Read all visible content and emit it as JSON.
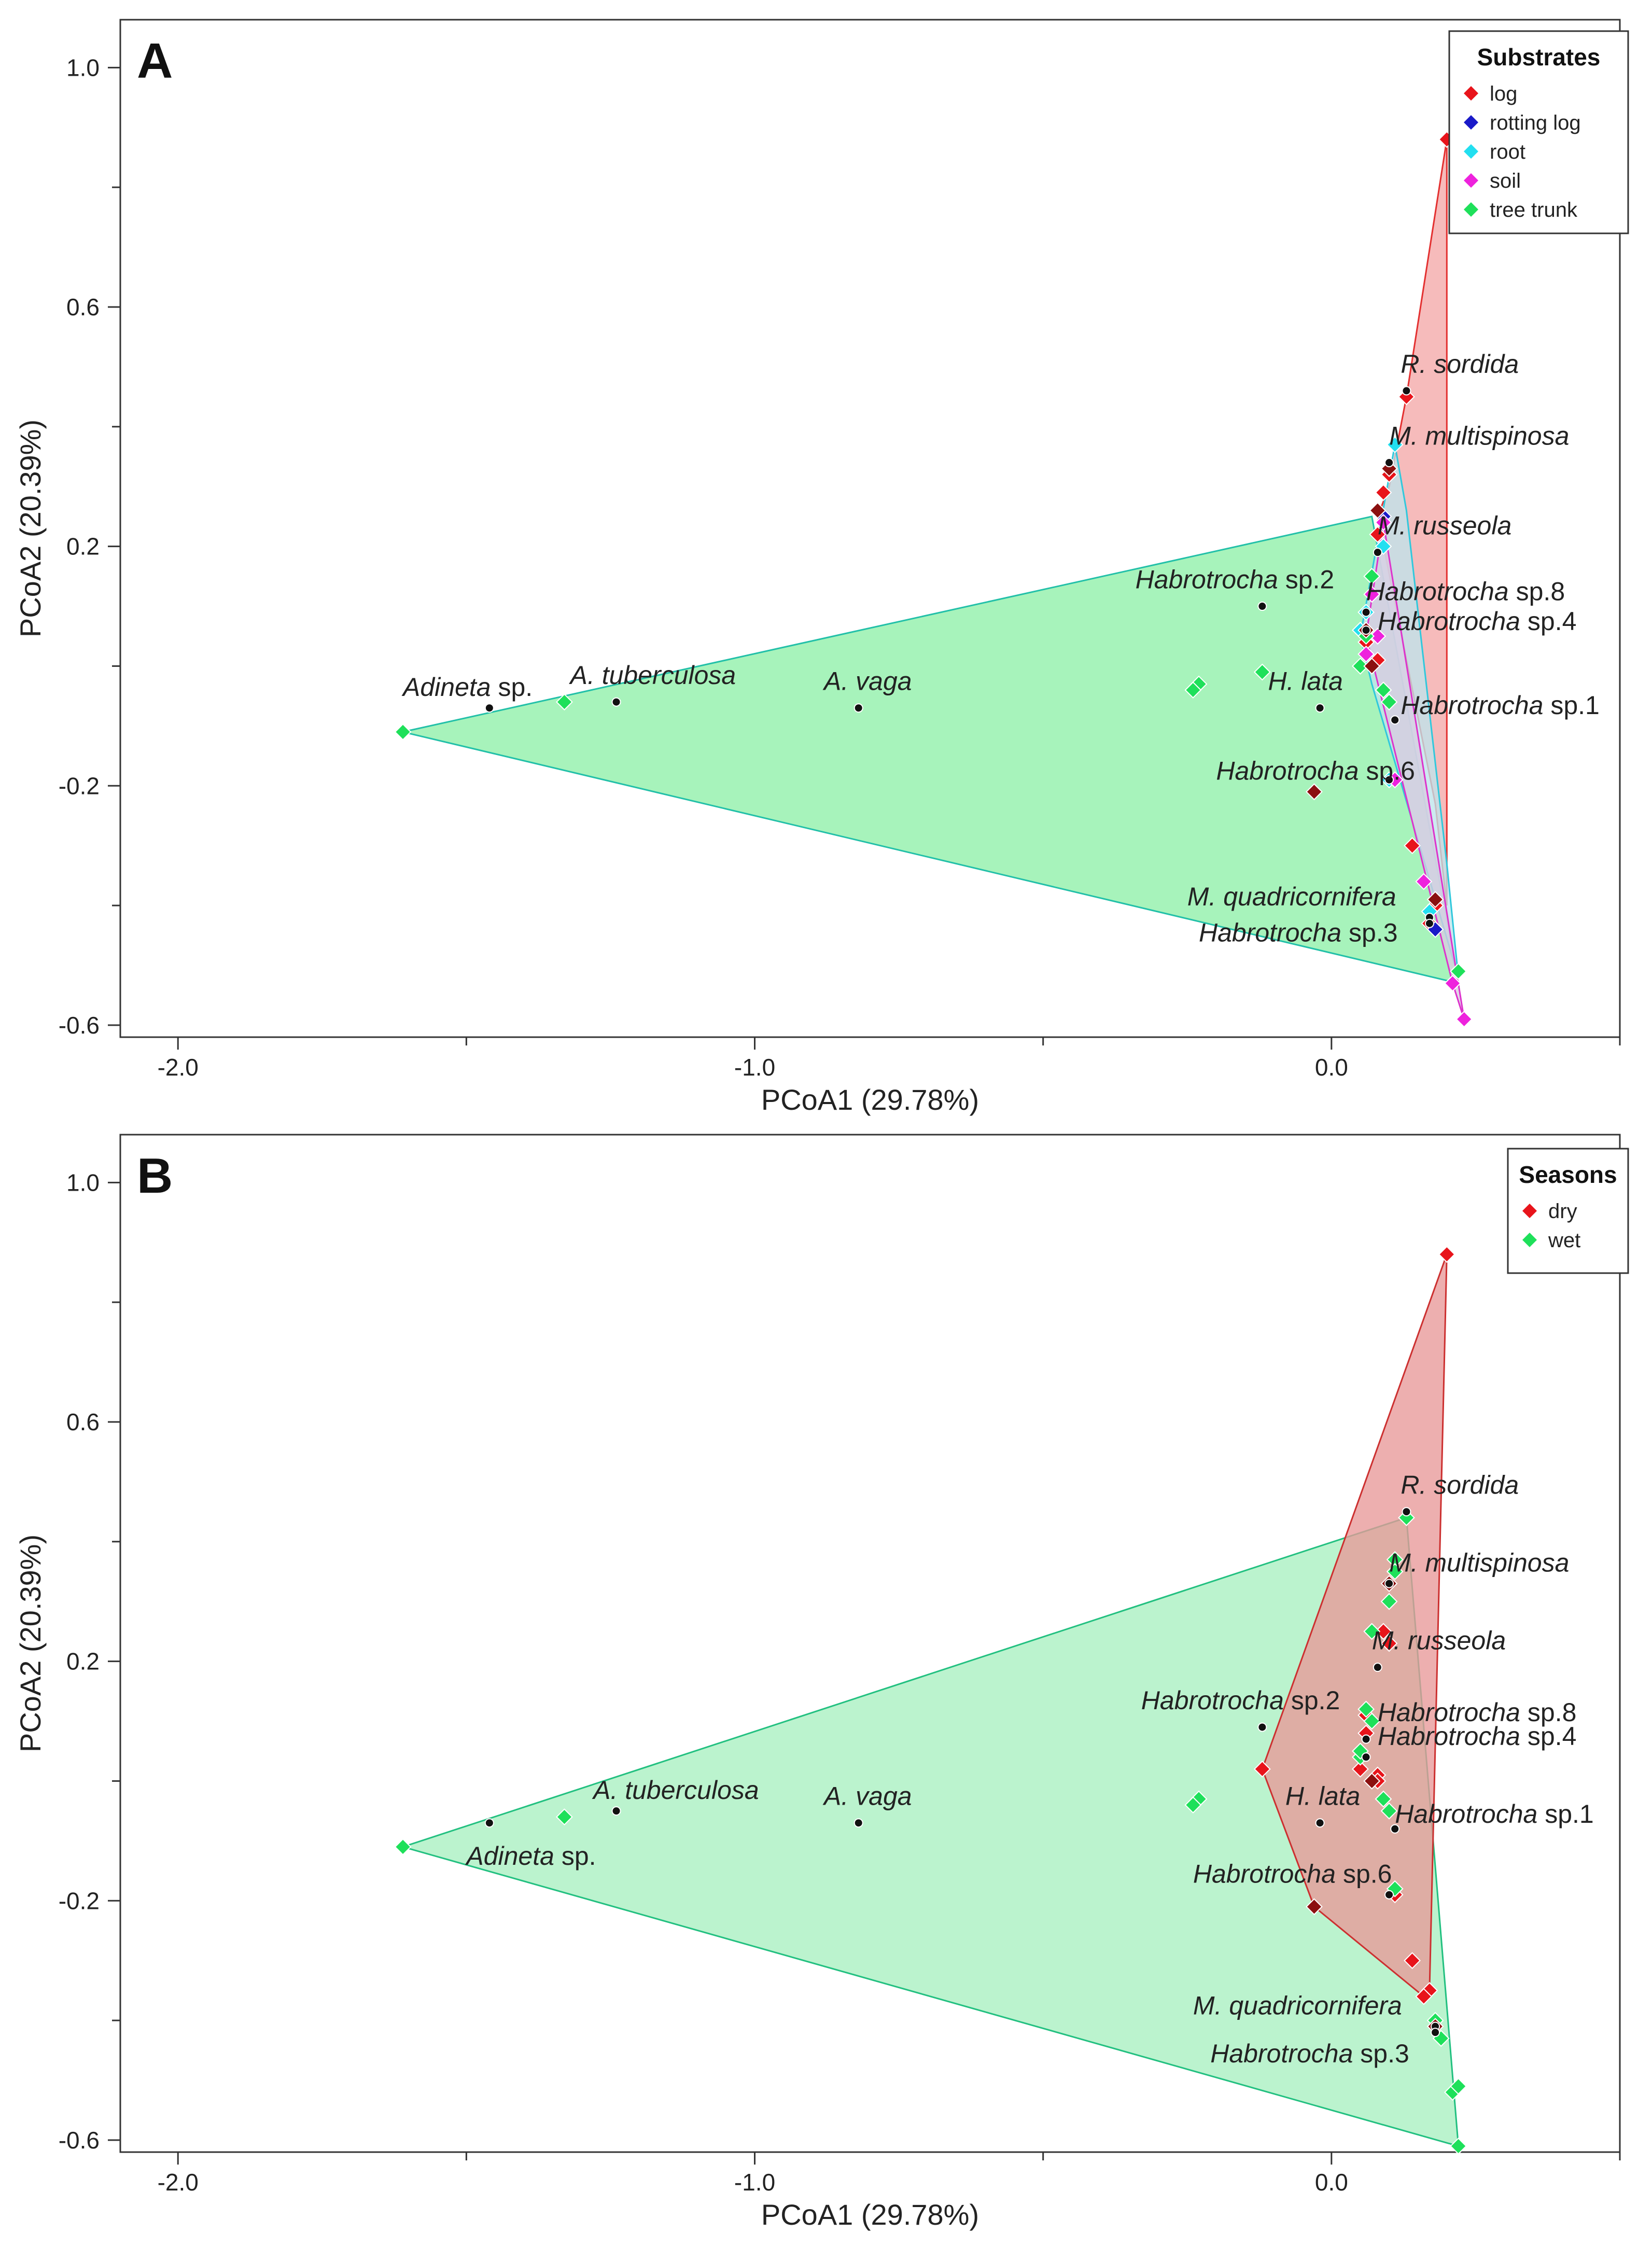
{
  "chart_data": [
    {
      "type": "scatter",
      "panel_label": "A",
      "xlabel": "PCoA1 (29.78%)",
      "ylabel": "PCoA2 (20.39%)",
      "xlim": [
        -2.1,
        0.5
      ],
      "ylim": [
        -0.62,
        1.08
      ],
      "x_ticks": [
        -2.0,
        -1.0,
        0.0
      ],
      "x_tick_labels": [
        "-2.0",
        "-1.0",
        "0.0"
      ],
      "x_minor_ticks": [
        -1.5,
        -0.5,
        0.5
      ],
      "y_ticks": [
        -0.6,
        -0.2,
        0.2,
        0.6,
        1.0
      ],
      "y_tick_labels": [
        "-0.6",
        "-0.2",
        "0.2",
        "0.6",
        "1.0"
      ],
      "y_minor_ticks": [
        -0.4,
        0.0,
        0.4,
        0.8
      ],
      "legend": {
        "title": "Substrates",
        "position": "top-right",
        "entries": [
          {
            "name": "log",
            "color": "#e8141b"
          },
          {
            "name": "rotting log",
            "color": "#1a1ac8"
          },
          {
            "name": "root",
            "color": "#22dff0"
          },
          {
            "name": "soil",
            "color": "#ee22dd"
          },
          {
            "name": "tree trunk",
            "color": "#1ee05a"
          }
        ]
      },
      "hulls": [
        {
          "group": "tree trunk",
          "fill": "#8ef0a8",
          "stroke": "#22c0a8",
          "points": [
            [
              -1.61,
              -0.11
            ],
            [
              0.07,
              0.25
            ],
            [
              0.22,
              -0.53
            ]
          ]
        },
        {
          "group": "log",
          "fill": "#f4a8a8",
          "stroke": "#e33030",
          "points": [
            [
              0.2,
              0.88
            ],
            [
              0.13,
              0.45
            ],
            [
              0.1,
              0.3
            ],
            [
              0.08,
              0.25
            ],
            [
              0.18,
              -0.23
            ],
            [
              0.2,
              -0.4
            ]
          ]
        },
        {
          "group": "root",
          "fill": "#bfe4ec",
          "stroke": "#30c8dc",
          "points": [
            [
              0.11,
              0.37
            ],
            [
              0.13,
              0.26
            ],
            [
              0.2,
              -0.33
            ],
            [
              0.22,
              -0.52
            ],
            [
              0.07,
              -0.03
            ],
            [
              0.05,
              0.05
            ]
          ]
        },
        {
          "group": "soil",
          "fill": "#d8cce0",
          "stroke": "#dd33cc",
          "points": [
            [
              0.09,
              0.24
            ],
            [
              0.23,
              -0.59
            ],
            [
              0.21,
              -0.53
            ],
            [
              0.06,
              0.05
            ]
          ]
        }
      ],
      "series": [
        {
          "name": "log",
          "color": "#e8141b",
          "points": [
            [
              0.2,
              0.88
            ],
            [
              0.13,
              0.45
            ],
            [
              0.1,
              0.32
            ],
            [
              0.09,
              0.29
            ],
            [
              0.08,
              0.01
            ],
            [
              0.14,
              -0.3
            ],
            [
              0.18,
              -0.4
            ],
            [
              0.17,
              -0.43
            ],
            [
              0.06,
              0.04
            ],
            [
              0.08,
              0.22
            ]
          ]
        },
        {
          "name": "rotting log",
          "color": "#1a1ac8",
          "points": [
            [
              0.09,
              0.25
            ],
            [
              0.18,
              -0.44
            ]
          ]
        },
        {
          "name": "root",
          "color": "#22dff0",
          "points": [
            [
              0.11,
              0.37
            ],
            [
              0.06,
              0.09
            ],
            [
              0.05,
              0.06
            ],
            [
              0.09,
              0.2
            ],
            [
              0.1,
              -0.19
            ],
            [
              0.17,
              -0.41
            ]
          ]
        },
        {
          "name": "soil",
          "color": "#ee22dd",
          "points": [
            [
              0.07,
              0.12
            ],
            [
              0.09,
              0.24
            ],
            [
              0.06,
              0.02
            ],
            [
              0.08,
              0.05
            ],
            [
              0.11,
              -0.19
            ],
            [
              0.16,
              -0.36
            ],
            [
              0.21,
              -0.53
            ],
            [
              0.23,
              -0.59
            ]
          ]
        },
        {
          "name": "tree trunk",
          "color": "#1ee05a",
          "points": [
            [
              -1.61,
              -0.11
            ],
            [
              -1.33,
              -0.06
            ],
            [
              -0.23,
              -0.03
            ],
            [
              -0.24,
              -0.04
            ],
            [
              -0.12,
              -0.01
            ],
            [
              0.05,
              0.0
            ],
            [
              0.09,
              -0.04
            ],
            [
              0.1,
              -0.06
            ],
            [
              0.06,
              0.05
            ],
            [
              0.07,
              0.15
            ],
            [
              0.22,
              -0.51
            ]
          ]
        },
        {
          "name": "dark",
          "color": "#8b1010",
          "points": [
            [
              0.1,
              0.33
            ],
            [
              0.08,
              0.26
            ],
            [
              0.06,
              0.06
            ],
            [
              0.07,
              0.0
            ],
            [
              -0.03,
              -0.21
            ],
            [
              0.18,
              -0.39
            ]
          ]
        }
      ],
      "species": [
        {
          "x": -1.46,
          "y": -0.07,
          "italic": "Adineta",
          "rest": " sp.",
          "lx": -1.61,
          "ly": -0.05
        },
        {
          "x": -1.24,
          "y": -0.06,
          "italic": "A. tuberculosa",
          "rest": "",
          "lx": -1.32,
          "ly": -0.03
        },
        {
          "x": -0.82,
          "y": -0.07,
          "italic": "A. vaga",
          "rest": "",
          "lx": -0.88,
          "ly": -0.04
        },
        {
          "x": -0.12,
          "y": 0.1,
          "italic": "Habrotrocha",
          "rest": " sp.2",
          "lx": -0.34,
          "ly": 0.13
        },
        {
          "x": -0.02,
          "y": -0.07,
          "italic": "H. lata",
          "rest": "",
          "lx": -0.11,
          "ly": -0.04
        },
        {
          "x": 0.13,
          "y": 0.46,
          "italic": "R. sordida",
          "rest": "",
          "lx": 0.12,
          "ly": 0.49
        },
        {
          "x": 0.1,
          "y": 0.34,
          "italic": "M. multispinosa",
          "rest": "",
          "lx": 0.1,
          "ly": 0.37
        },
        {
          "x": 0.08,
          "y": 0.19,
          "italic": "M. russeola",
          "rest": "",
          "lx": 0.08,
          "ly": 0.22
        },
        {
          "x": 0.06,
          "y": 0.09,
          "italic": "Habrotrocha",
          "rest": " sp.8",
          "lx": 0.06,
          "ly": 0.11
        },
        {
          "x": 0.06,
          "y": 0.06,
          "italic": "Habrotrocha",
          "rest": " sp.4",
          "lx": 0.08,
          "ly": 0.06
        },
        {
          "x": 0.11,
          "y": -0.09,
          "italic": "Habrotrocha",
          "rest": " sp.1",
          "lx": 0.12,
          "ly": -0.08
        },
        {
          "x": 0.1,
          "y": -0.19,
          "italic": "Habrotrocha",
          "rest": " sp.6",
          "lx": -0.2,
          "ly": -0.19
        },
        {
          "x": 0.17,
          "y": -0.42,
          "italic": "M. quadricornifera",
          "rest": "",
          "lx": -0.25,
          "ly": -0.4
        },
        {
          "x": 0.17,
          "y": -0.43,
          "italic": "Habrotrocha",
          "rest": " sp.3",
          "lx": -0.23,
          "ly": -0.46
        }
      ]
    },
    {
      "type": "scatter",
      "panel_label": "B",
      "xlabel": "PCoA1 (29.78%)",
      "ylabel": "PCoA2 (20.39%)",
      "xlim": [
        -2.1,
        0.5
      ],
      "ylim": [
        -0.62,
        1.08
      ],
      "x_ticks": [
        -2.0,
        -1.0,
        0.0
      ],
      "x_tick_labels": [
        "-2.0",
        "-1.0",
        "0.0"
      ],
      "x_minor_ticks": [
        -1.5,
        -0.5,
        0.5
      ],
      "y_ticks": [
        -0.6,
        -0.2,
        0.2,
        0.6,
        1.0
      ],
      "y_tick_labels": [
        "-0.6",
        "-0.2",
        "0.2",
        "0.6",
        "1.0"
      ],
      "y_minor_ticks": [
        -0.4,
        0.0,
        0.4,
        0.8
      ],
      "legend": {
        "title": "Seasons",
        "position": "top-right",
        "entries": [
          {
            "name": "dry",
            "color": "#e8141b"
          },
          {
            "name": "wet",
            "color": "#1ee05a"
          }
        ]
      },
      "hulls": [
        {
          "group": "wet",
          "fill": "#a8f0c0",
          "stroke": "#22c080",
          "points": [
            [
              -1.61,
              -0.11
            ],
            [
              0.13,
              0.44
            ],
            [
              0.22,
              -0.61
            ]
          ]
        },
        {
          "group": "dry",
          "fill": "#e89898",
          "stroke": "#cc3030",
          "points": [
            [
              0.2,
              0.88
            ],
            [
              0.17,
              -0.35
            ],
            [
              0.16,
              -0.36
            ],
            [
              -0.03,
              -0.21
            ],
            [
              -0.12,
              0.02
            ]
          ]
        }
      ],
      "series": [
        {
          "name": "dry",
          "color": "#e8141b",
          "points": [
            [
              0.2,
              0.88
            ],
            [
              -0.12,
              0.02
            ],
            [
              0.06,
              0.11
            ],
            [
              0.06,
              0.08
            ],
            [
              0.05,
              0.02
            ],
            [
              0.08,
              0.01
            ],
            [
              0.08,
              0.0
            ],
            [
              0.1,
              0.23
            ],
            [
              0.09,
              0.25
            ],
            [
              0.14,
              -0.3
            ],
            [
              0.17,
              -0.35
            ],
            [
              0.16,
              -0.36
            ],
            [
              0.11,
              -0.19
            ]
          ]
        },
        {
          "name": "wet",
          "color": "#1ee05a",
          "points": [
            [
              -1.61,
              -0.11
            ],
            [
              -1.33,
              -0.06
            ],
            [
              -0.23,
              -0.03
            ],
            [
              -0.24,
              -0.04
            ],
            [
              0.05,
              0.04
            ],
            [
              0.05,
              0.05
            ],
            [
              0.09,
              -0.03
            ],
            [
              0.1,
              -0.05
            ],
            [
              0.13,
              0.44
            ],
            [
              0.11,
              0.37
            ],
            [
              0.1,
              0.3
            ],
            [
              0.11,
              0.35
            ],
            [
              0.07,
              0.25
            ],
            [
              0.06,
              0.12
            ],
            [
              0.07,
              0.1
            ],
            [
              0.11,
              -0.18
            ],
            [
              0.18,
              -0.4
            ],
            [
              0.19,
              -0.43
            ],
            [
              0.21,
              -0.52
            ],
            [
              0.22,
              -0.51
            ],
            [
              0.22,
              -0.61
            ]
          ]
        },
        {
          "name": "dark",
          "color": "#8b1010",
          "points": [
            [
              -0.03,
              -0.21
            ],
            [
              0.1,
              0.33
            ],
            [
              0.07,
              0.0
            ],
            [
              0.18,
              -0.41
            ]
          ]
        }
      ],
      "species": [
        {
          "x": -1.46,
          "y": -0.07,
          "italic": "Adineta",
          "rest": " sp.",
          "lx": -1.5,
          "ly": -0.14
        },
        {
          "x": -1.24,
          "y": -0.05,
          "italic": "A. tuberculosa",
          "rest": "",
          "lx": -1.28,
          "ly": -0.03
        },
        {
          "x": -0.82,
          "y": -0.07,
          "italic": "A. vaga",
          "rest": "",
          "lx": -0.88,
          "ly": -0.04
        },
        {
          "x": -0.12,
          "y": 0.09,
          "italic": "Habrotrocha",
          "rest": " sp.2",
          "lx": -0.33,
          "ly": 0.12
        },
        {
          "x": -0.02,
          "y": -0.07,
          "italic": "H. lata",
          "rest": "",
          "lx": -0.08,
          "ly": -0.04
        },
        {
          "x": 0.13,
          "y": 0.45,
          "italic": "R. sordida",
          "rest": "",
          "lx": 0.12,
          "ly": 0.48
        },
        {
          "x": 0.1,
          "y": 0.33,
          "italic": "M. multispinosa",
          "rest": "",
          "lx": 0.1,
          "ly": 0.35
        },
        {
          "x": 0.08,
          "y": 0.19,
          "italic": "M. russeola",
          "rest": "",
          "lx": 0.07,
          "ly": 0.22
        },
        {
          "x": 0.06,
          "y": 0.07,
          "italic": "Habrotrocha",
          "rest": " sp.8",
          "lx": 0.08,
          "ly": 0.1
        },
        {
          "x": 0.06,
          "y": 0.04,
          "italic": "Habrotrocha",
          "rest": " sp.4",
          "lx": 0.08,
          "ly": 0.06
        },
        {
          "x": 0.11,
          "y": -0.08,
          "italic": "Habrotrocha",
          "rest": " sp.1",
          "lx": 0.11,
          "ly": -0.07
        },
        {
          "x": 0.1,
          "y": -0.19,
          "italic": "Habrotrocha",
          "rest": " sp.6",
          "lx": -0.24,
          "ly": -0.17
        },
        {
          "x": 0.18,
          "y": -0.41,
          "italic": "M. quadricornifera",
          "rest": "",
          "lx": -0.24,
          "ly": -0.39
        },
        {
          "x": 0.18,
          "y": -0.42,
          "italic": "Habrotrocha",
          "rest": " sp.3",
          "lx": -0.21,
          "ly": -0.47
        }
      ]
    }
  ]
}
